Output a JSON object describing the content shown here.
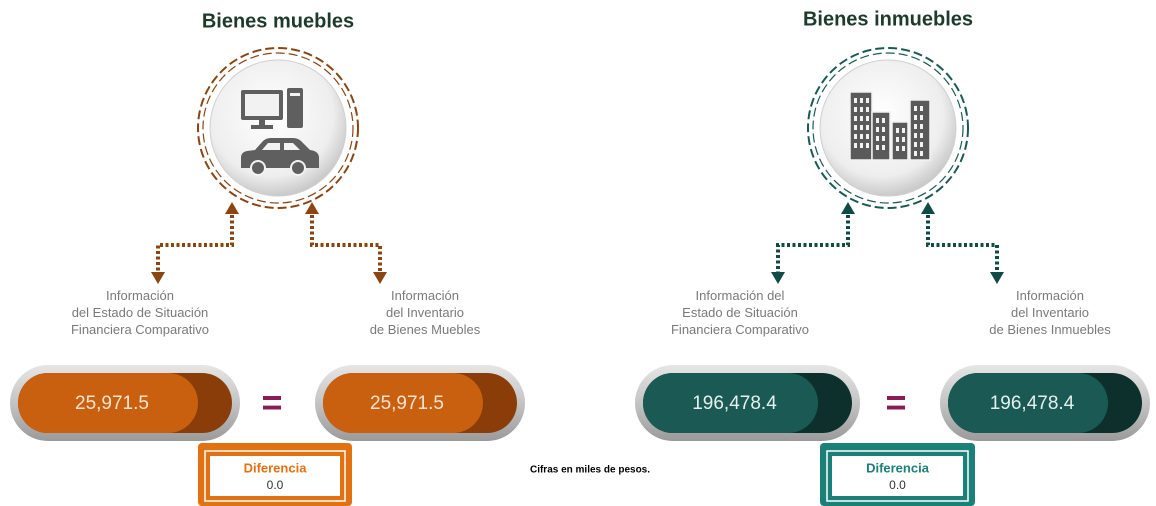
{
  "sections": [
    {
      "title": "Bienes muebles",
      "left_label": [
        "Información",
        "del Estado de Situación",
        "Financiera Comparativo"
      ],
      "left_value": "25,971.5",
      "equals": "=",
      "right_label": [
        "Información",
        "del Inventario",
        "de Bienes Muebles"
      ],
      "right_value": "25,971.5",
      "difference_label": "Diferencia",
      "difference_value": "0.0"
    },
    {
      "title": "Bienes inmuebles",
      "left_label": [
        "Información del",
        "Estado de Situación",
        "Financiera Comparativo"
      ],
      "left_value": "196,478.4",
      "equals": "=",
      "right_label": [
        "Información",
        "del Inventario",
        "de Bienes Inmuebles"
      ],
      "right_value": "196,478.4",
      "difference_label": "Diferencia",
      "difference_value": "0.0"
    }
  ],
  "footnote": "Cifras en miles de pesos."
}
